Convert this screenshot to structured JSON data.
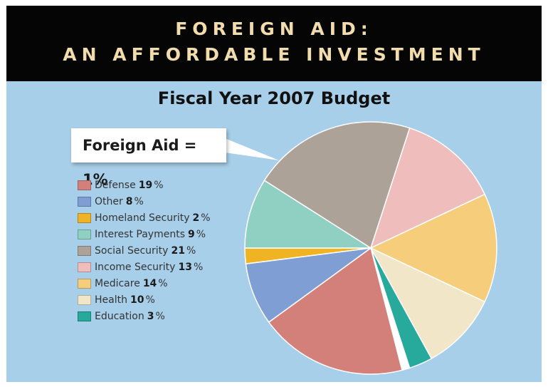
{
  "banner": {
    "line1": "FOREIGN AID:",
    "line2": "AN AFFORDABLE INVESTMENT"
  },
  "callout": {
    "text": "Foreign Aid = 1%"
  },
  "legend": {
    "percent_sign": "%"
  },
  "chart_data": {
    "type": "pie",
    "title": "Fiscal Year 2007 Budget",
    "unit": "%",
    "slices": [
      {
        "label": "Foreign Aid",
        "value": 1,
        "color": "#ffffff"
      },
      {
        "label": "Defense",
        "value": 19,
        "color": "#d4807a"
      },
      {
        "label": "Other",
        "value": 8,
        "color": "#7f9ed3"
      },
      {
        "label": "Homeland Security",
        "value": 2,
        "color": "#f0b323"
      },
      {
        "label": "Interest Payments",
        "value": 9,
        "color": "#8fd0c2"
      },
      {
        "label": "Social Security",
        "value": 21,
        "color": "#ada298"
      },
      {
        "label": "Income Security",
        "value": 13,
        "color": "#eebdbc"
      },
      {
        "label": "Medicare",
        "value": 14,
        "color": "#f6cd7b"
      },
      {
        "label": "Health",
        "value": 10,
        "color": "#f1e7c8"
      },
      {
        "label": "Education",
        "value": 3,
        "color": "#27aa9b"
      }
    ],
    "legend_order": [
      "Defense",
      "Other",
      "Homeland Security",
      "Interest Payments",
      "Social Security",
      "Income Security",
      "Medicare",
      "Health",
      "Education"
    ],
    "callout_slice": "Foreign Aid",
    "legend_position": "left"
  }
}
